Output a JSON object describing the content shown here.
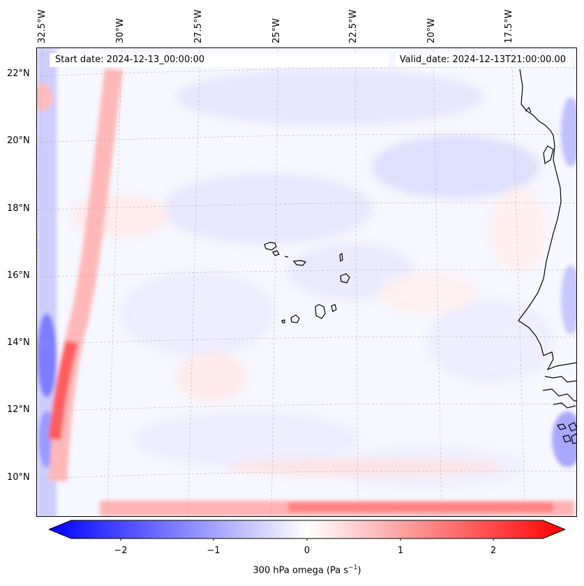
{
  "map": {
    "title_start": "Start date: 2024-12-13_00:00:00",
    "title_valid": "Valid_date: 2024-12-13T21:00:00.00",
    "longitude_labels": [
      "32.5°W",
      "30°W",
      "27.5°W",
      "25°W",
      "22.5°W",
      "20°W",
      "17.5°W"
    ],
    "latitude_labels": [
      "22°N",
      "20°N",
      "18°N",
      "16°N",
      "14°N",
      "12°N",
      "10°N"
    ],
    "features": [
      "Cape Verde islands",
      "West African coastline"
    ],
    "colors": {
      "negative": "#0000ff",
      "neutral": "#ffffff",
      "positive": "#ff0000",
      "coastline": "#000000",
      "gridline": "#b0b0b0"
    }
  },
  "colorbar": {
    "label": "300 hPa omega (Pa s",
    "label_sup": "−1",
    "label_close": ")",
    "ticks": [
      "−2",
      "−1",
      "0",
      "1",
      "2"
    ],
    "tick_values": [
      -2,
      -1,
      0,
      1,
      2
    ],
    "range": [
      -2.6,
      2.6
    ],
    "extend": "both"
  }
}
